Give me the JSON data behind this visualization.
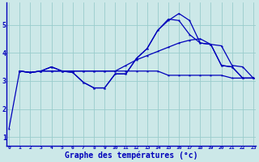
{
  "xlabel": "Graphe des températures (°c)",
  "background_color": "#cce8e8",
  "line_color": "#0000bb",
  "grid_color": "#99cccc",
  "xlim": [
    -0.2,
    23.2
  ],
  "ylim": [
    0.7,
    5.8
  ],
  "xticks": [
    0,
    1,
    2,
    3,
    4,
    5,
    6,
    7,
    8,
    9,
    10,
    11,
    12,
    13,
    14,
    15,
    16,
    17,
    18,
    19,
    20,
    21,
    22,
    23
  ],
  "yticks": [
    1,
    2,
    3,
    4,
    5
  ],
  "series": {
    "line1_x": [
      0,
      1,
      2,
      3,
      4,
      5,
      6,
      7,
      8,
      9,
      10,
      11,
      12,
      13,
      14,
      15,
      16,
      17,
      18,
      19,
      20,
      21,
      22,
      23
    ],
    "line1_y": [
      1.3,
      3.35,
      3.3,
      3.35,
      3.5,
      3.35,
      3.3,
      2.95,
      2.75,
      2.75,
      3.25,
      3.25,
      3.8,
      4.15,
      4.8,
      5.15,
      5.4,
      5.15,
      4.35,
      4.3,
      3.55,
      3.5,
      3.1,
      3.1
    ],
    "line2_x": [
      1,
      2,
      3,
      4,
      5,
      6,
      7,
      8,
      9,
      10,
      11,
      12,
      13,
      14,
      15,
      16,
      17,
      18,
      19,
      20,
      21,
      22,
      23
    ],
    "line2_y": [
      3.35,
      3.3,
      3.35,
      3.5,
      3.35,
      3.3,
      2.95,
      2.75,
      2.75,
      3.25,
      3.25,
      3.8,
      4.15,
      4.8,
      5.2,
      5.15,
      4.65,
      4.35,
      4.3,
      3.55,
      3.5,
      3.1,
      3.1
    ],
    "line3_x": [
      1,
      2,
      3,
      4,
      5,
      6,
      7,
      8,
      9,
      10,
      11,
      12,
      13,
      14,
      15,
      16,
      17,
      18,
      19,
      20,
      21,
      22,
      23
    ],
    "line3_y": [
      3.35,
      3.3,
      3.35,
      3.35,
      3.35,
      3.35,
      3.35,
      3.35,
      3.35,
      3.35,
      3.55,
      3.75,
      3.9,
      4.05,
      4.2,
      4.35,
      4.45,
      4.5,
      4.3,
      4.25,
      3.55,
      3.5,
      3.1
    ],
    "line4_x": [
      1,
      2,
      3,
      4,
      5,
      6,
      7,
      8,
      9,
      10,
      11,
      12,
      13,
      14,
      15,
      16,
      17,
      18,
      19,
      20,
      21,
      22,
      23
    ],
    "line4_y": [
      3.35,
      3.3,
      3.35,
      3.35,
      3.35,
      3.35,
      3.35,
      3.35,
      3.35,
      3.35,
      3.35,
      3.35,
      3.35,
      3.35,
      3.2,
      3.2,
      3.2,
      3.2,
      3.2,
      3.2,
      3.1,
      3.1,
      3.1
    ]
  }
}
